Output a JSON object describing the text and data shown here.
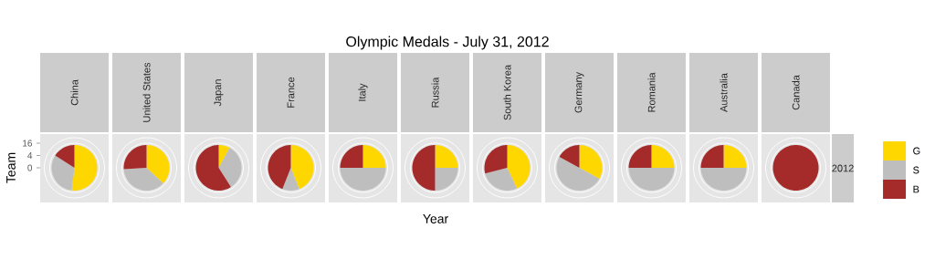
{
  "chart_data": [
    {
      "type": "pie",
      "title": "China",
      "categories": [
        "G",
        "S",
        "B"
      ],
      "values": [
        52,
        32,
        16
      ],
      "colors": [
        "#ffd700",
        "#bebebe",
        "#a52a2a"
      ],
      "grid": true,
      "legend": "right",
      "xlabel": "Year",
      "ylabel": "Team",
      "annotations": [
        "Olympic Medals - July 31, 2012",
        "2012",
        "16",
        "4",
        "0"
      ]
    },
    {
      "type": "pie",
      "title": "United States",
      "values": [
        37,
        37,
        26
      ],
      "colors": [
        "#ffd700",
        "#bebebe",
        "#a52a2a"
      ],
      "grid": true
    },
    {
      "type": "pie",
      "title": "Japan",
      "values": [
        8,
        33,
        59
      ],
      "colors": [
        "#ffd700",
        "#bebebe",
        "#a52a2a"
      ],
      "grid": true
    },
    {
      "type": "pie",
      "title": "France",
      "values": [
        44,
        12,
        44
      ],
      "colors": [
        "#ffd700",
        "#bebebe",
        "#a52a2a"
      ],
      "grid": true
    },
    {
      "type": "pie",
      "title": "Italy",
      "values": [
        25,
        50,
        25
      ],
      "colors": [
        "#ffd700",
        "#bebebe",
        "#a52a2a"
      ],
      "grid": true
    },
    {
      "type": "pie",
      "title": "Russia",
      "values": [
        25,
        25,
        50
      ],
      "colors": [
        "#ffd700",
        "#bebebe",
        "#a52a2a"
      ],
      "grid": true
    },
    {
      "type": "pie",
      "title": "South Korea",
      "values": [
        43,
        28,
        29
      ],
      "colors": [
        "#ffd700",
        "#bebebe",
        "#a52a2a"
      ],
      "grid": true
    },
    {
      "type": "pie",
      "title": "Germany",
      "values": [
        33,
        50,
        17
      ],
      "colors": [
        "#ffd700",
        "#bebebe",
        "#a52a2a"
      ],
      "grid": true
    },
    {
      "type": "pie",
      "title": "Romania",
      "values": [
        25,
        50,
        25
      ],
      "colors": [
        "#ffd700",
        "#bebebe",
        "#a52a2a"
      ],
      "grid": true
    },
    {
      "type": "pie",
      "title": "Australia",
      "values": [
        25,
        50,
        25
      ],
      "colors": [
        "#ffd700",
        "#bebebe",
        "#a52a2a"
      ],
      "grid": true
    },
    {
      "type": "pie",
      "title": "Canada",
      "values": [
        0,
        0,
        100
      ],
      "colors": [
        "#ffd700",
        "#bebebe",
        "#a52a2a"
      ],
      "grid": true
    }
  ]
}
